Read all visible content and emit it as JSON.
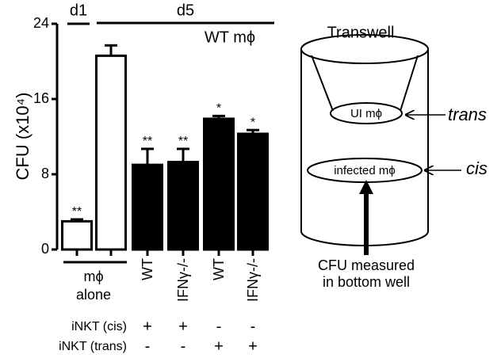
{
  "chart_data": {
    "type": "bar",
    "y_label": "CFU (x10⁴)",
    "top_labels": [
      "d1",
      "d5",
      "WT mϕ"
    ],
    "group_label": [
      "mϕ",
      "alone"
    ],
    "categories": [
      null,
      null,
      "WT",
      "IFNγ-/-",
      "WT",
      "IFNγ-/-"
    ],
    "values": [
      3.0,
      20.6,
      9.0,
      9.3,
      13.9,
      12.3
    ],
    "errors": [
      0.2,
      1.1,
      1.7,
      1.4,
      0.3,
      0.4
    ],
    "significance": [
      "**",
      null,
      "**",
      "**",
      "*",
      "*"
    ],
    "colors": [
      "#ffffff",
      "#ffffff",
      "#000000",
      "#000000",
      "#000000",
      "#000000"
    ],
    "ylim": [
      0,
      24
    ],
    "yticks": [
      0,
      8,
      16,
      24
    ],
    "conditions": [
      {
        "name": "iNKT (cis)",
        "signs": [
          null,
          null,
          "+",
          "+",
          "-",
          "-"
        ]
      },
      {
        "name": "iNKT (trans)",
        "signs": [
          null,
          null,
          "-",
          "-",
          "+",
          "+"
        ]
      }
    ]
  },
  "diagram": {
    "title": "Transwell",
    "upper": "UI mϕ",
    "upper_side": "trans",
    "lower": "infected mϕ",
    "lower_side": "cis",
    "measure": [
      "CFU measured",
      "in bottom well"
    ]
  }
}
